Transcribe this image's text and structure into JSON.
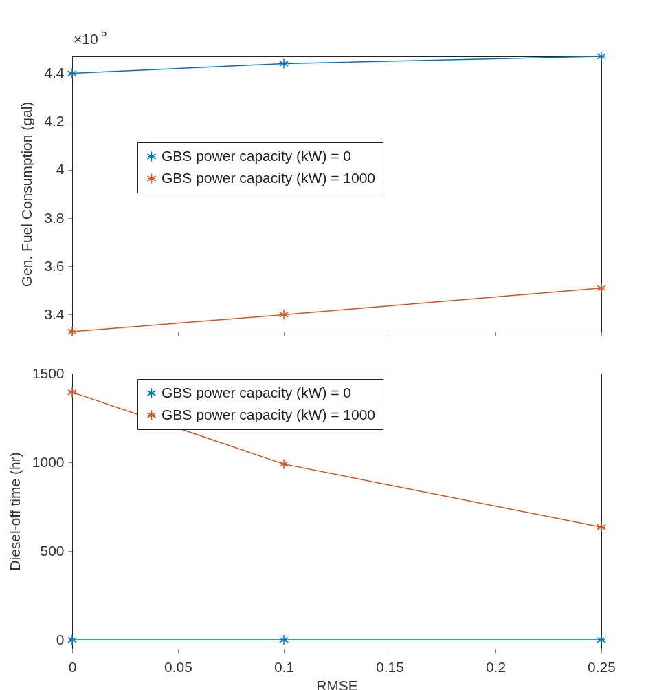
{
  "chart_data": [
    {
      "type": "line",
      "ylabel": "Gen. Fuel Consumption (gal)",
      "annotations": [
        "×10$^{5}$"
      ],
      "x": [
        0,
        0.1,
        0.25
      ],
      "xlim": [
        0,
        0.25
      ],
      "xticks": [
        0,
        0.05,
        0.1,
        0.15,
        0.2,
        0.25
      ],
      "ylim": [
        3.33,
        4.47
      ],
      "yticks": [
        3.4,
        3.6,
        3.8,
        4,
        4.2,
        4.4
      ],
      "tick_labels": "y",
      "grid": false,
      "legend": "center",
      "marker": "cross",
      "line_style": "solid",
      "series": [
        {
          "name": "GBS power capacity (kW) = 0",
          "color": "#0072bd",
          "values": [
            4.4,
            4.44,
            4.47
          ]
        },
        {
          "name": "GBS power capacity (kW) = 1000",
          "color": "#d95319",
          "values": [
            3.33,
            3.4,
            3.51
          ]
        }
      ]
    },
    {
      "type": "line",
      "xlabel": "RMSE",
      "ylabel": "Diesel-off time (hr)",
      "x": [
        0,
        0.1,
        0.25
      ],
      "xlim": [
        0,
        0.25
      ],
      "xticks": [
        0,
        0.05,
        0.1,
        0.15,
        0.2,
        0.25
      ],
      "ylim": [
        -50,
        1500
      ],
      "yticks": [
        0,
        500,
        1000,
        1500
      ],
      "grid": false,
      "legend": "top",
      "marker": "cross",
      "line_style": "solid",
      "series": [
        {
          "name": "GBS power capacity (kW) = 0",
          "color": "#0072bd",
          "values": [
            0,
            0,
            0
          ]
        },
        {
          "name": "GBS power capacity (kW) = 1000",
          "color": "#d95319",
          "values": [
            1395,
            990,
            635
          ]
        }
      ]
    }
  ]
}
